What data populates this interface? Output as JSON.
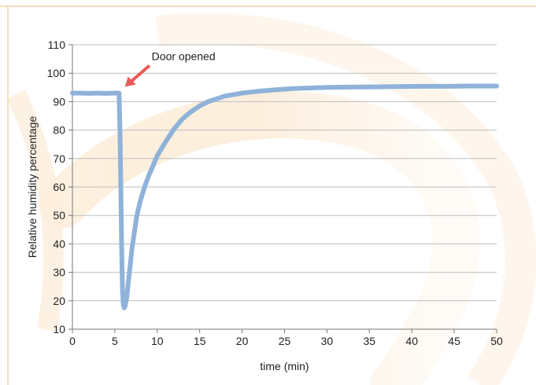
{
  "chart_data": {
    "type": "line",
    "title": "",
    "xlabel": "time (min)",
    "ylabel": "Relative humidity percentage",
    "xlim": [
      0,
      50
    ],
    "ylim": [
      10,
      110
    ],
    "xticks": [
      0,
      5,
      10,
      15,
      20,
      25,
      30,
      35,
      40,
      45,
      50
    ],
    "yticks": [
      10,
      20,
      30,
      40,
      50,
      60,
      70,
      80,
      90,
      100,
      110
    ],
    "grid": "horizontal",
    "legend": "none",
    "series": [
      {
        "color": "#8fb2d9",
        "x": [
          0,
          1,
          2,
          3,
          4,
          5,
          5.5,
          5.6,
          5.7,
          5.8,
          5.9,
          6.0,
          6.1,
          6.2,
          6.4,
          6.6,
          6.8,
          7.0,
          7.3,
          7.6,
          8.0,
          8.5,
          9.0,
          9.5,
          10,
          11,
          12,
          13,
          14,
          15,
          16,
          17,
          18,
          19,
          20,
          22,
          24,
          26,
          28,
          30,
          32,
          35,
          38,
          41,
          44,
          47,
          50
        ],
        "y": [
          93,
          93,
          92.9,
          93,
          92.9,
          93,
          93,
          80,
          62,
          40,
          24,
          18.5,
          17.5,
          18,
          21,
          27,
          32,
          38,
          44,
          50,
          55,
          60,
          64,
          67.5,
          71,
          76,
          80.5,
          84,
          86.5,
          88.5,
          90,
          91,
          92,
          92.5,
          93,
          93.7,
          94.2,
          94.6,
          94.8,
          95,
          95.1,
          95.2,
          95.3,
          95.4,
          95.4,
          95.5,
          95.5
        ]
      }
    ],
    "annotations": [
      {
        "text": "Door opened",
        "x": 6,
        "y": 93
      }
    ],
    "colors": {
      "line": "#8fb2d9",
      "arrow": "#ea5a57",
      "grid": "#bdbdbd",
      "frame": "#f4d3a0",
      "watermark": "#fbe3c5"
    }
  }
}
